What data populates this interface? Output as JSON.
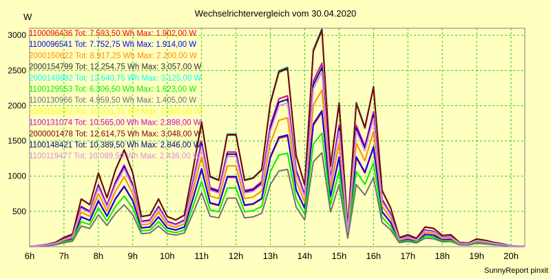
{
  "chart_data": {
    "type": "line",
    "title": "Wechselrichtervergleich vom 30.04.2020",
    "ylabel": "W",
    "footer": "SunnyReport pinxit",
    "grid": true,
    "legend_placement": "top-left",
    "ylim": [
      0,
      3100
    ],
    "xlim": [
      6.0,
      20.4
    ],
    "yticks": [
      500,
      1000,
      1500,
      2000,
      2500,
      3000
    ],
    "xticks": [
      6,
      7,
      8,
      9,
      10,
      11,
      12,
      13,
      14,
      15,
      16,
      17,
      18,
      19,
      20
    ],
    "xtick_labels": [
      "6h",
      "7h",
      "8h",
      "9h",
      "10h",
      "11h",
      "12h",
      "13h",
      "14h",
      "15h",
      "16h",
      "17h",
      "18h",
      "19h",
      "20h"
    ],
    "x": [
      6.0,
      6.5,
      6.75,
      7.0,
      7.25,
      7.5,
      7.75,
      8.0,
      8.25,
      8.5,
      8.75,
      9.0,
      9.25,
      9.5,
      9.75,
      10.0,
      10.25,
      10.5,
      10.75,
      11.0,
      11.25,
      11.5,
      11.75,
      12.0,
      12.25,
      12.5,
      12.75,
      13.0,
      13.25,
      13.5,
      13.75,
      14.0,
      14.25,
      14.5,
      14.75,
      15.0,
      15.25,
      15.5,
      15.75,
      16.0,
      16.25,
      16.5,
      16.75,
      17.0,
      17.25,
      17.5,
      17.75,
      18.0,
      18.25,
      18.5,
      18.75,
      19.0,
      19.25,
      19.5,
      19.75,
      20.0,
      20.4
    ],
    "series": [
      {
        "name": "1100096436 Tot: 7.593,50 Wh Max: 1.902,00 W",
        "color": "#ff0000",
        "scale": 0.615
      },
      {
        "name": "1100096541 Tot: 7.752,75 Wh Max: 1.914,00 W",
        "color": "#0000ff",
        "scale": 0.622
      },
      {
        "name": "2000150622 Tot: 8.917,25 Wh Max: 2.200,00 W",
        "color": "#ff8c00",
        "scale": 0.717
      },
      {
        "name": "2000154799 Tot: 12.254,75 Wh Max: 3.057,00 W",
        "color": "#303030",
        "scale": 0.99
      },
      {
        "name": "2000149892 Tot: 12.640,75 Wh Max: 3.125,00 W",
        "color": "#00ffff",
        "scale": 1.0
      },
      {
        "name": "1100129553 Tot: 6.306,50 Wh Max: 1.623,00 W",
        "color": "#00ee00",
        "scale": 0.52
      },
      {
        "name": "1100130966 Tot: 4.959,50 Wh Max: 1.405,00 W",
        "color": "#707070",
        "scale": 0.43
      },
      {
        "name": "2000150862 Tot: 10.531,75 Wh Max: 2.605,00 W",
        "color": "#ffff00",
        "scale": 0.835
      },
      {
        "name": "1100131074 Tot: 10.565,00 Wh Max: 2.898,00 W",
        "color": "#cc00cc",
        "scale": 0.84
      },
      {
        "name": "2000001478 Tot: 12.614,75 Wh Max: 3.048,00 W",
        "color": "#800000",
        "scale": 0.995
      },
      {
        "name": "1100148421 Tot: 10.389,50 Wh Max: 2.846,00 W",
        "color": "#000080",
        "scale": 0.82
      },
      {
        "name": "1100119477 Tot: 10.089,50 Wh Max: 2.436,00 W",
        "color": "#dd88ee",
        "scale": 0.8
      }
    ],
    "base_profile": [
      0,
      30,
      60,
      130,
      180,
      680,
      600,
      1050,
      700,
      1100,
      1380,
      1050,
      430,
      450,
      680,
      430,
      380,
      450,
      1100,
      1780,
      1000,
      950,
      1600,
      1600,
      950,
      980,
      1100,
      2050,
      2500,
      2550,
      1300,
      880,
      2800,
      3100,
      1150,
      2050,
      280,
      2050,
      1700,
      2280,
      800,
      550,
      130,
      170,
      120,
      280,
      260,
      160,
      170,
      60,
      50,
      110,
      90,
      60,
      40,
      10,
      0
    ]
  }
}
